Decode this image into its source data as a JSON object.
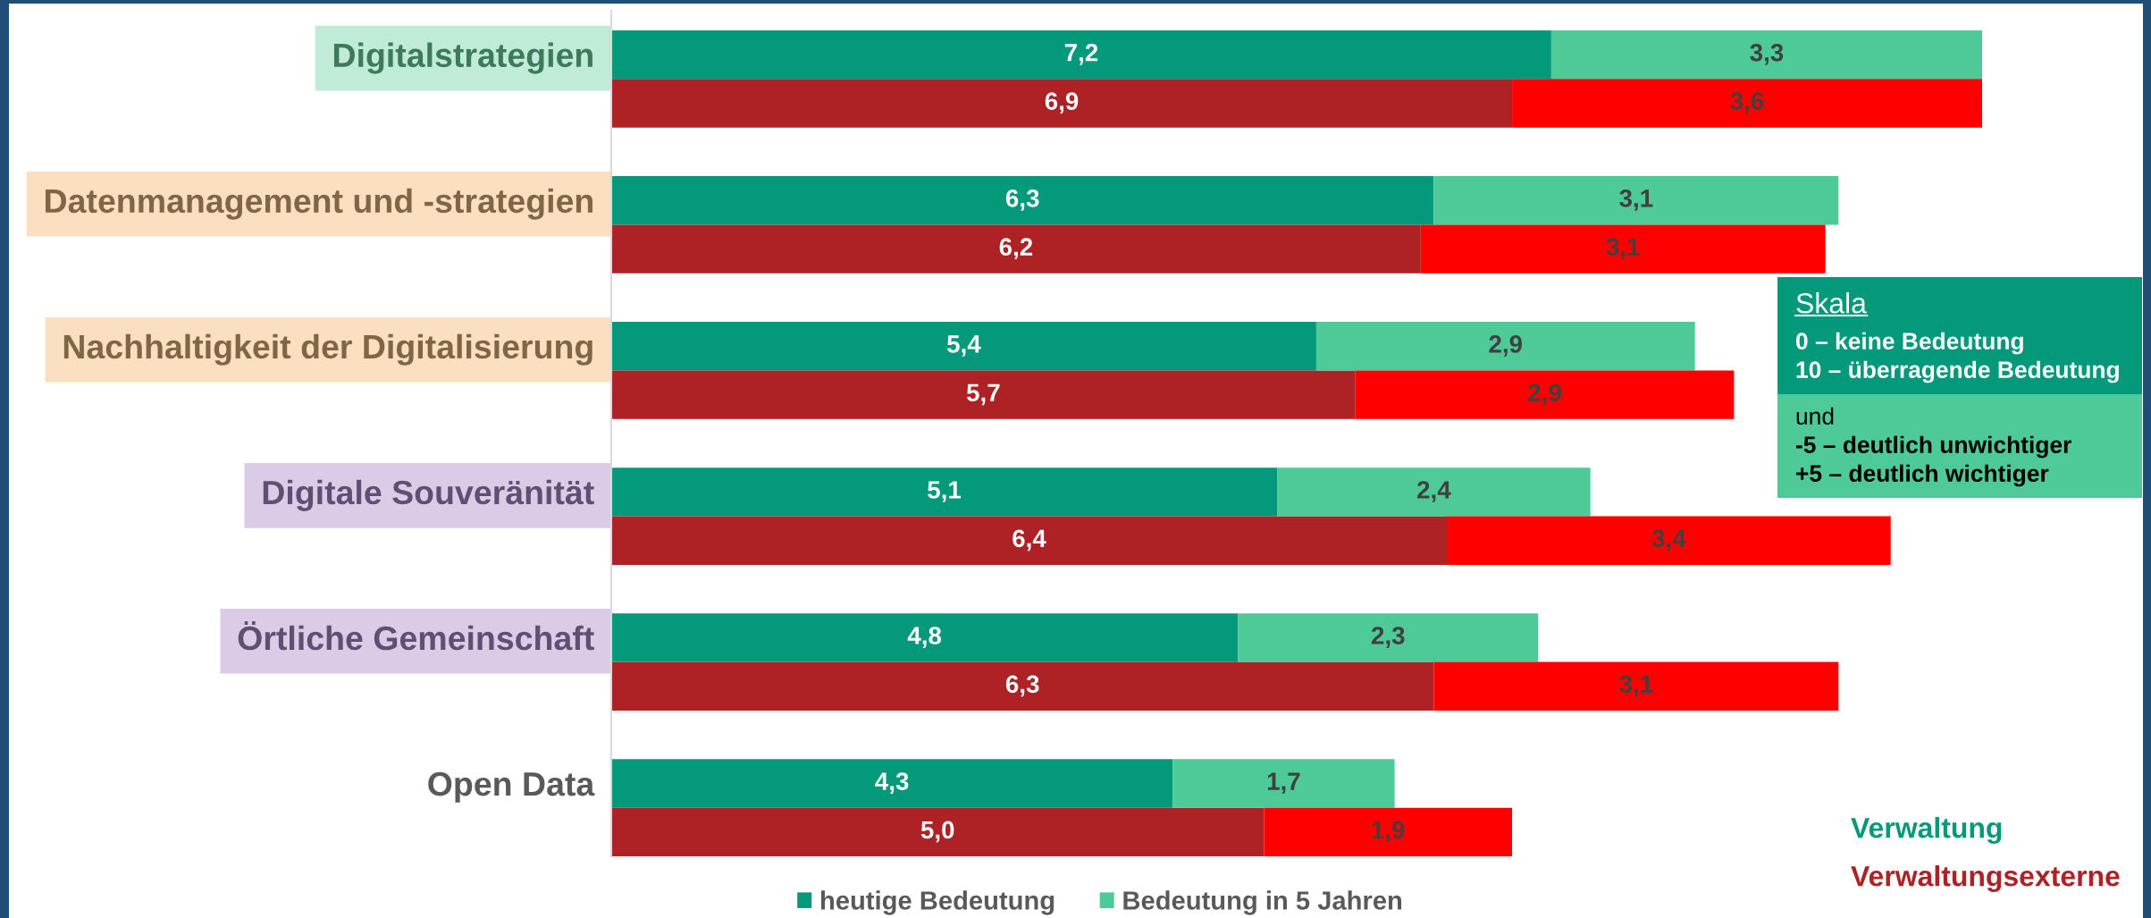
{
  "chart_data": {
    "type": "bar",
    "orientation": "horizontal",
    "stacked": true,
    "categories": [
      "Digitalstrategien",
      null,
      "Datenmanagement und -strategien",
      null,
      "Nachhaltigkeit der Digitalisierung",
      null,
      "Digitale Souveränität",
      null,
      "Örtliche Gemeinschaft",
      null,
      "Open Data",
      null
    ],
    "series": [
      {
        "name": "heutige Bedeutung",
        "colors": [
          "#03997a",
          "#ae2124",
          "#03997a",
          "#ae2124",
          "#03997a",
          "#ae2124",
          "#03997a",
          "#ae2124",
          "#03997a",
          "#ae2124",
          "#03997a",
          "#ae2124"
        ],
        "values": [
          7.2,
          6.9,
          6.3,
          6.2,
          5.4,
          5.7,
          5.1,
          6.4,
          4.8,
          6.3,
          4.3,
          5.0
        ],
        "value_labels": [
          "7,2",
          "6,9",
          "6,3",
          "6,2",
          "5,4",
          "5,7",
          "5,1",
          "6,4",
          "4,8",
          "6,3",
          "4,3",
          "5,0"
        ]
      },
      {
        "name": "Bedeutung in 5 Jahren",
        "colors": [
          "#4dca97",
          "#ff0000",
          "#4dca97",
          "#ff0000",
          "#4dca97",
          "#ff0000",
          "#4dca97",
          "#ff0000",
          "#4dca97",
          "#ff0000",
          "#4dca97",
          "#ff0000"
        ],
        "values": [
          3.3,
          3.6,
          3.1,
          3.1,
          2.9,
          2.9,
          2.4,
          3.4,
          2.3,
          3.1,
          1.7,
          1.9
        ],
        "value_labels": [
          "3,3",
          "3,6",
          "3,1",
          "3,1",
          "2,9",
          "2,9",
          "2,4",
          "3,4",
          "2,3",
          "3,1",
          "1,7",
          "1,9"
        ]
      }
    ],
    "legend": "bottom",
    "annotations": [
      "Skala",
      "0 – keine Bedeutung",
      "10 – überragende Bedeutung",
      "und",
      "-5 – deutlich unwichtiger",
      "+5 – deutlich wichtiger",
      "Verwaltung",
      "Verwaltungsexterne"
    ]
  }
}
